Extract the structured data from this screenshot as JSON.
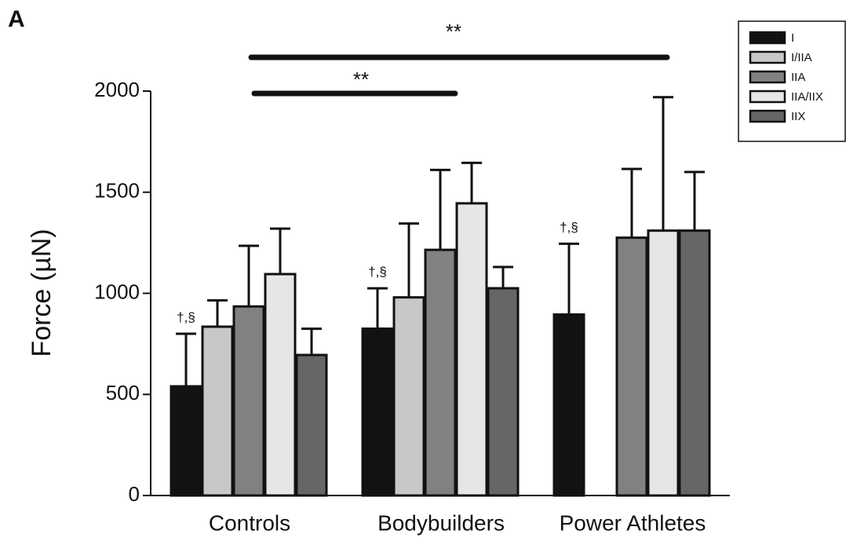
{
  "chart_data": {
    "type": "bar",
    "panel_label": "A",
    "y_label": "Force (µN)",
    "categories": [
      "Controls",
      "Bodybuilders",
      "Power Athletes"
    ],
    "series": [
      {
        "name": "I",
        "color": "#121212",
        "values": [
          540,
          825,
          895
        ],
        "errors": [
          260,
          200,
          350
        ],
        "annotations": [
          "†,§",
          "†,§",
          "†,§"
        ]
      },
      {
        "name": "I/IIA",
        "color": "#c8c8c8",
        "values": [
          835,
          980,
          null
        ],
        "errors": [
          130,
          365,
          null
        ]
      },
      {
        "name": "IIA",
        "color": "#818181",
        "values": [
          935,
          1215,
          1275
        ],
        "errors": [
          300,
          395,
          340
        ]
      },
      {
        "name": "IIA/IIX",
        "color": "#e6e6e8",
        "values": [
          1095,
          1445,
          1310
        ],
        "errors": [
          225,
          200,
          660
        ]
      },
      {
        "name": "IIX",
        "color": "#666666",
        "values": [
          695,
          1025,
          1310
        ],
        "errors": [
          130,
          105,
          290
        ]
      }
    ],
    "significance": [
      "**",
      "**"
    ],
    "ylim": [
      0,
      2000
    ],
    "yticks": [
      0,
      500,
      1000,
      1500,
      2000
    ]
  }
}
